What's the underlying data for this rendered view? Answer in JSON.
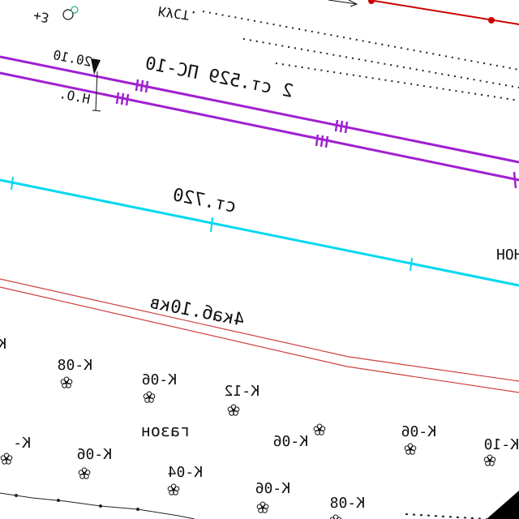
{
  "colors": {
    "background": "#ffffff",
    "outside": "#000000",
    "gas_pipe": "#a020d0",
    "water_pipe": "#00d8f0",
    "cable": "#d02020",
    "power_line": "#cc0000",
    "text": "#111111"
  },
  "labels": {
    "top_fragment": "КУСТ.",
    "gas_label": "2 ст.529 ПС-10",
    "elevation": "20.10",
    "level_mark": "Н.О.",
    "water_label": "ст.720",
    "cable_label": "4каб.10кв",
    "right_edge": "НОН",
    "lawn": "газон",
    "left_fragment_1": "К",
    "left_fragment_2": "К-"
  },
  "shrubs": [
    {
      "label": "К-08"
    },
    {
      "label": "К-06"
    },
    {
      "label": "К-12"
    },
    {
      "label": "К-06"
    },
    {
      "label": "К-06"
    },
    {
      "label": "К-10"
    },
    {
      "label": "К-06"
    },
    {
      "label": "К-04"
    },
    {
      "label": "К-06"
    },
    {
      "label": "К-08"
    }
  ]
}
